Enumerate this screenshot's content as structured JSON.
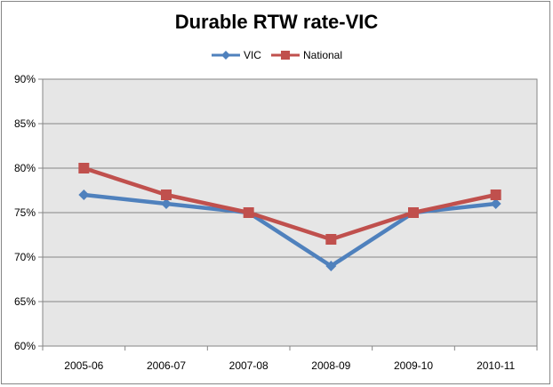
{
  "chart_data": {
    "type": "line",
    "title": "Durable RTW rate-VIC",
    "xlabel": "",
    "ylabel": "",
    "categories": [
      "2005-06",
      "2006-07",
      "2007-08",
      "2008-09",
      "2009-10",
      "2010-11"
    ],
    "ylim": [
      60,
      90
    ],
    "y_ticks": [
      "60%",
      "65%",
      "70%",
      "75%",
      "80%",
      "85%",
      "90%"
    ],
    "y_tick_values": [
      60,
      65,
      70,
      75,
      80,
      85,
      90
    ],
    "grid": true,
    "legend_position": "top",
    "plot_background": "#E6E6E6",
    "series": [
      {
        "name": "VIC",
        "values": [
          77,
          76,
          75,
          69,
          75,
          76
        ],
        "color": "#4F81BD",
        "marker": "diamond"
      },
      {
        "name": "National",
        "values": [
          80,
          77,
          75,
          72,
          75,
          77
        ],
        "color": "#C0504D",
        "marker": "square"
      }
    ]
  }
}
